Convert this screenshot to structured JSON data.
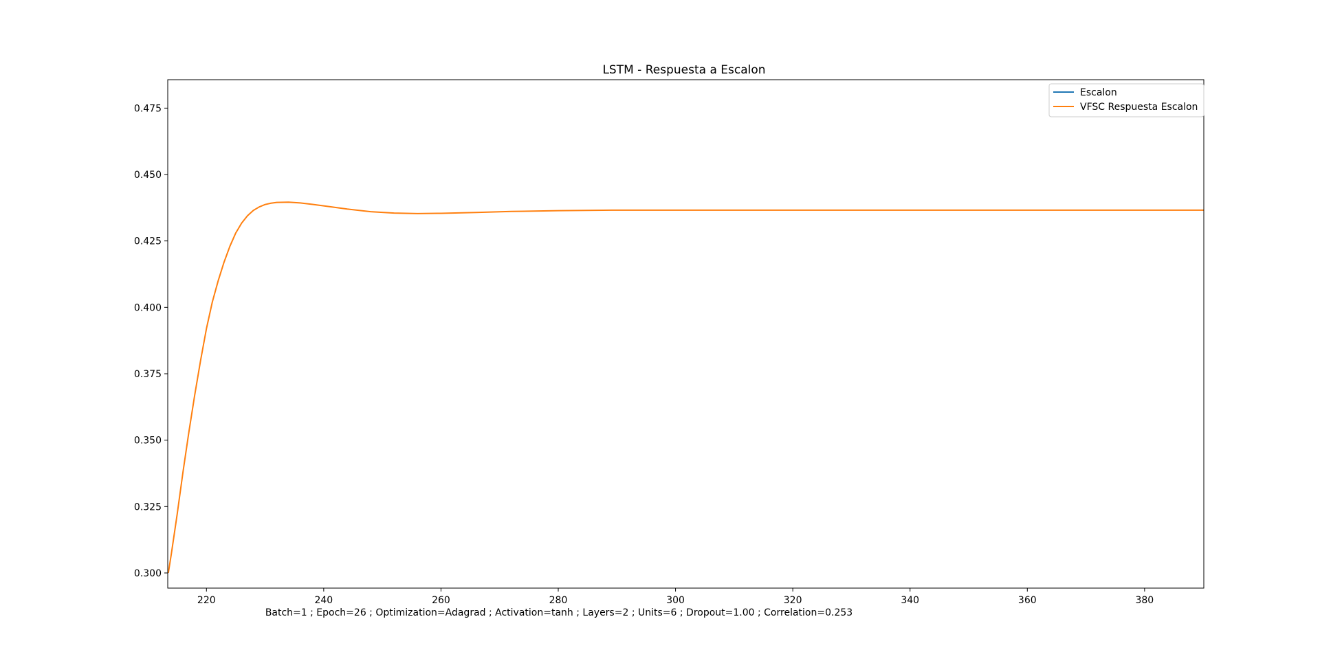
{
  "chart_data": {
    "type": "line",
    "title": "LSTM - Respuesta a Escalon",
    "xlabel": "Batch=1 ; Epoch=26 ; Optimization=Adagrad ; Activation=tanh ; Layers=2 ; Units=6 ; Dropout=1.00 ; Correlation=0.253",
    "ylabel": "",
    "xlim": [
      213.4,
      390.1
    ],
    "ylim": [
      0.2943,
      0.4857
    ],
    "grid": false,
    "legend_position": "top-right",
    "x_ticks": [
      220,
      240,
      260,
      280,
      300,
      320,
      340,
      360,
      380
    ],
    "y_ticks": [
      0.3,
      0.325,
      0.35,
      0.375,
      0.4,
      0.425,
      0.45,
      0.475
    ],
    "y_tick_labels": [
      "0.300",
      "0.325",
      "0.350",
      "0.375",
      "0.400",
      "0.425",
      "0.450",
      "0.475"
    ],
    "series": [
      {
        "name": "Escalon",
        "color": "#1f77b4",
        "x": [],
        "y": []
      },
      {
        "name": "VFSC Respuesta Escalon",
        "color": "#ff7f0e",
        "x": [
          213.5,
          214,
          215,
          216,
          217,
          218,
          219,
          220,
          221,
          222,
          223,
          224,
          225,
          226,
          227,
          228,
          229,
          230,
          231,
          232,
          234,
          236,
          238,
          240,
          244,
          248,
          252,
          256,
          260,
          266,
          272,
          280,
          290,
          300,
          320,
          340,
          360,
          380,
          390.1
        ],
        "y": [
          0.3,
          0.307,
          0.322,
          0.338,
          0.353,
          0.367,
          0.38,
          0.392,
          0.402,
          0.41,
          0.417,
          0.423,
          0.428,
          0.4317,
          0.4345,
          0.4365,
          0.4378,
          0.4387,
          0.4392,
          0.4395,
          0.4396,
          0.4393,
          0.4388,
          0.4382,
          0.437,
          0.436,
          0.4355,
          0.4353,
          0.4354,
          0.4357,
          0.4361,
          0.4364,
          0.4366,
          0.4366,
          0.4366,
          0.4366,
          0.4366,
          0.4366,
          0.4366
        ]
      }
    ]
  }
}
